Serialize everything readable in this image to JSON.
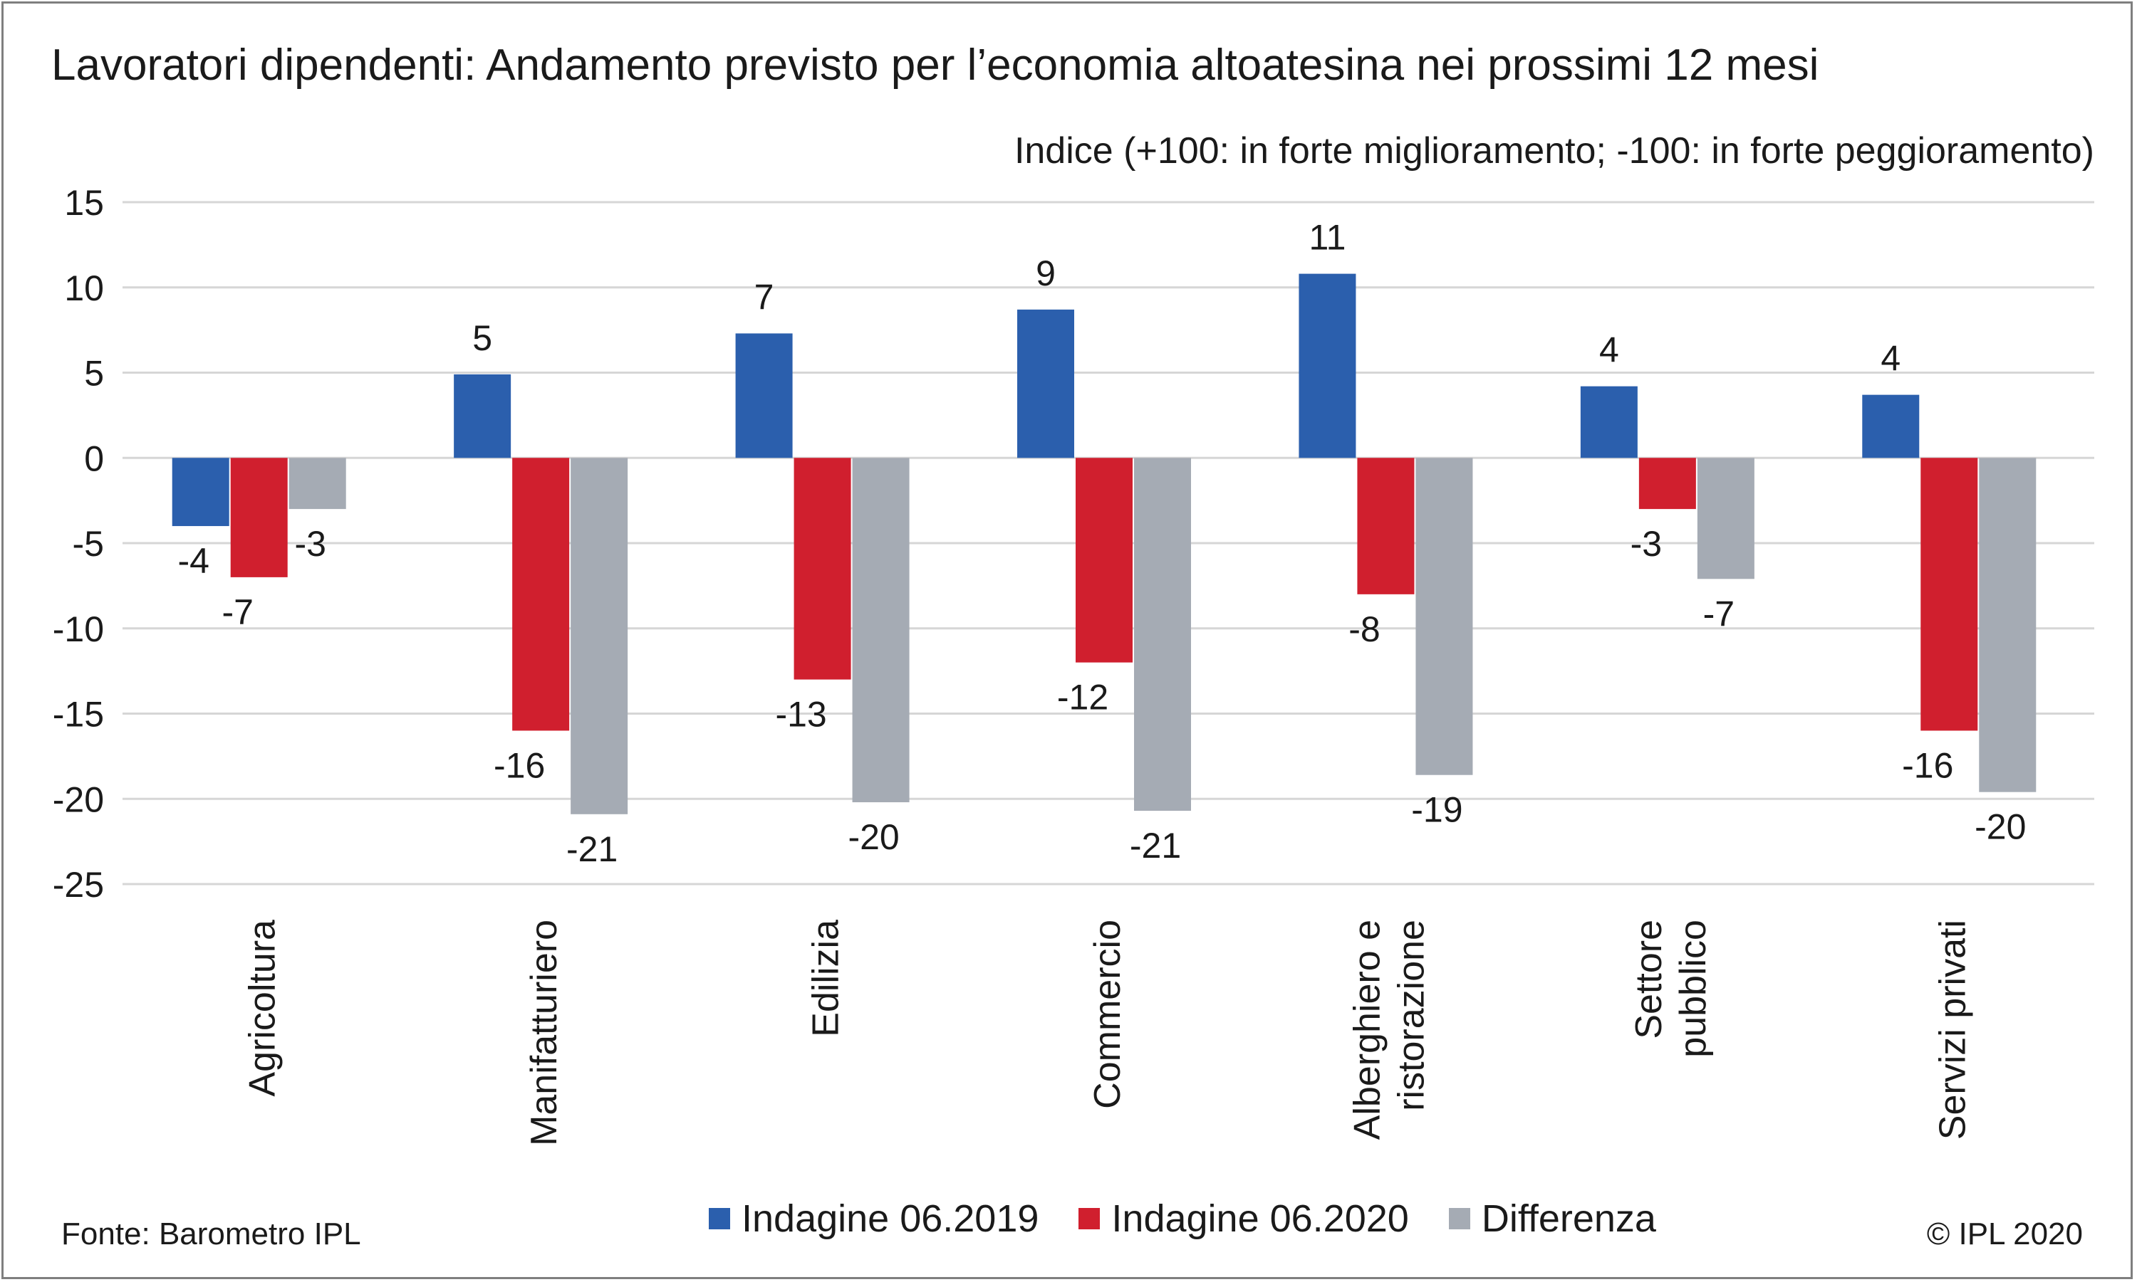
{
  "title": "Lavoratori dipendenti: Andamento previsto per l’economia altoatesina nei prossimi 12 mesi",
  "subtitle": "Indice (+100:  in forte miglioramento; -100: in forte peggioramento)",
  "source": "Fonte:  Barometro IPL",
  "copyright": "© IPL 2020",
  "colors": {
    "series1": "#2b5fad",
    "series2": "#d01f2e",
    "series3": "#a5abb4",
    "grid": "#d6d6d6"
  },
  "chart_data": {
    "type": "bar",
    "categories": [
      "Agricoltura",
      "Manifatturiero",
      "Edilizia",
      "Commercio",
      "Alberghiero e ristorazione",
      "Settore pubblico",
      "Servizi privati"
    ],
    "category_lines": [
      [
        "Agricoltura"
      ],
      [
        "Manifatturiero"
      ],
      [
        "Edilizia"
      ],
      [
        "Commercio"
      ],
      [
        "Alberghiero e",
        "ristorazione"
      ],
      [
        "Settore",
        "pubblico"
      ],
      [
        "Servizi privati"
      ]
    ],
    "series": [
      {
        "name": "Indagine 06.2019",
        "values": [
          -4,
          4.9,
          7.3,
          8.7,
          10.8,
          4.2,
          3.7
        ],
        "labels": [
          "-4",
          "5",
          "7",
          "9",
          "11",
          "4",
          "4"
        ]
      },
      {
        "name": "Indagine 06.2020",
        "values": [
          -7,
          -16,
          -13,
          -12,
          -8,
          -3,
          -16
        ],
        "labels": [
          "-7",
          "-16",
          "-13",
          "-12",
          "-8",
          "-3",
          "-16"
        ]
      },
      {
        "name": "Differenza",
        "values": [
          -3,
          -20.9,
          -20.2,
          -20.7,
          -18.6,
          -7.1,
          -19.6
        ],
        "labels": [
          "-3",
          "-21",
          "-20",
          "-21",
          "-19",
          "-7",
          "-20"
        ]
      }
    ],
    "ylim": [
      -25,
      15
    ],
    "yticks": [
      15,
      10,
      5,
      0,
      -5,
      -10,
      -15,
      -20,
      -25
    ],
    "ytick_labels": [
      "15",
      "10",
      "5",
      "0",
      "-5",
      "-10",
      "-15",
      "-20",
      "-25"
    ],
    "grid": true,
    "legend_position": "bottom"
  }
}
